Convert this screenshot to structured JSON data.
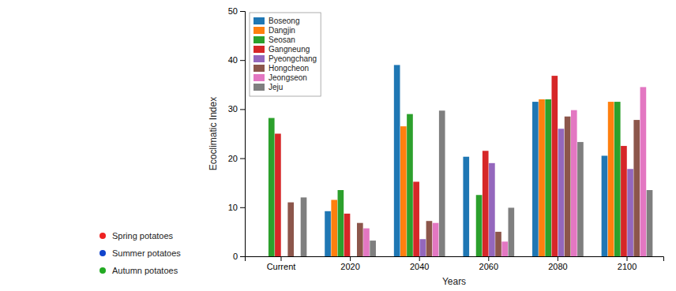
{
  "chart_data": {
    "type": "bar",
    "xlabel": "Years",
    "ylabel": "Ecoclimatic Index",
    "categories": [
      "Current",
      "2020",
      "2040",
      "2060",
      "2080",
      "2100"
    ],
    "series": [
      {
        "name": "Boseong",
        "values": [
          0,
          9.2,
          39.0,
          20.3,
          31.5,
          20.5
        ]
      },
      {
        "name": "Dangjin",
        "values": [
          0,
          11.5,
          26.5,
          0,
          32.0,
          31.5
        ]
      },
      {
        "name": "Seosan",
        "values": [
          28.2,
          13.5,
          29.0,
          12.5,
          32.0,
          31.5
        ]
      },
      {
        "name": "Gangneung",
        "values": [
          25.0,
          8.7,
          15.2,
          21.5,
          36.8,
          22.5
        ]
      },
      {
        "name": "Pyeongchang",
        "values": [
          0,
          0,
          3.5,
          19.0,
          26.0,
          17.8
        ]
      },
      {
        "name": "Hongcheon",
        "values": [
          11.0,
          6.8,
          7.2,
          5.0,
          28.5,
          27.8
        ]
      },
      {
        "name": "Jeongseon",
        "values": [
          0,
          5.7,
          6.8,
          3.0,
          29.8,
          34.5
        ]
      },
      {
        "name": "Jeju",
        "values": [
          12.0,
          3.2,
          29.7,
          9.9,
          23.3,
          13.5
        ]
      }
    ],
    "ylim": [
      0,
      50
    ],
    "yticks": [
      0,
      10,
      20,
      30,
      40,
      50
    ],
    "grid": false,
    "legend": "upper left",
    "annotations": [
      {
        "text": "Spring potatoes",
        "color": "#ee2222"
      },
      {
        "text": "Summer potatoes",
        "color": "#1144cc"
      },
      {
        "text": "Autumn potatoes",
        "color": "#22aa22"
      }
    ]
  }
}
